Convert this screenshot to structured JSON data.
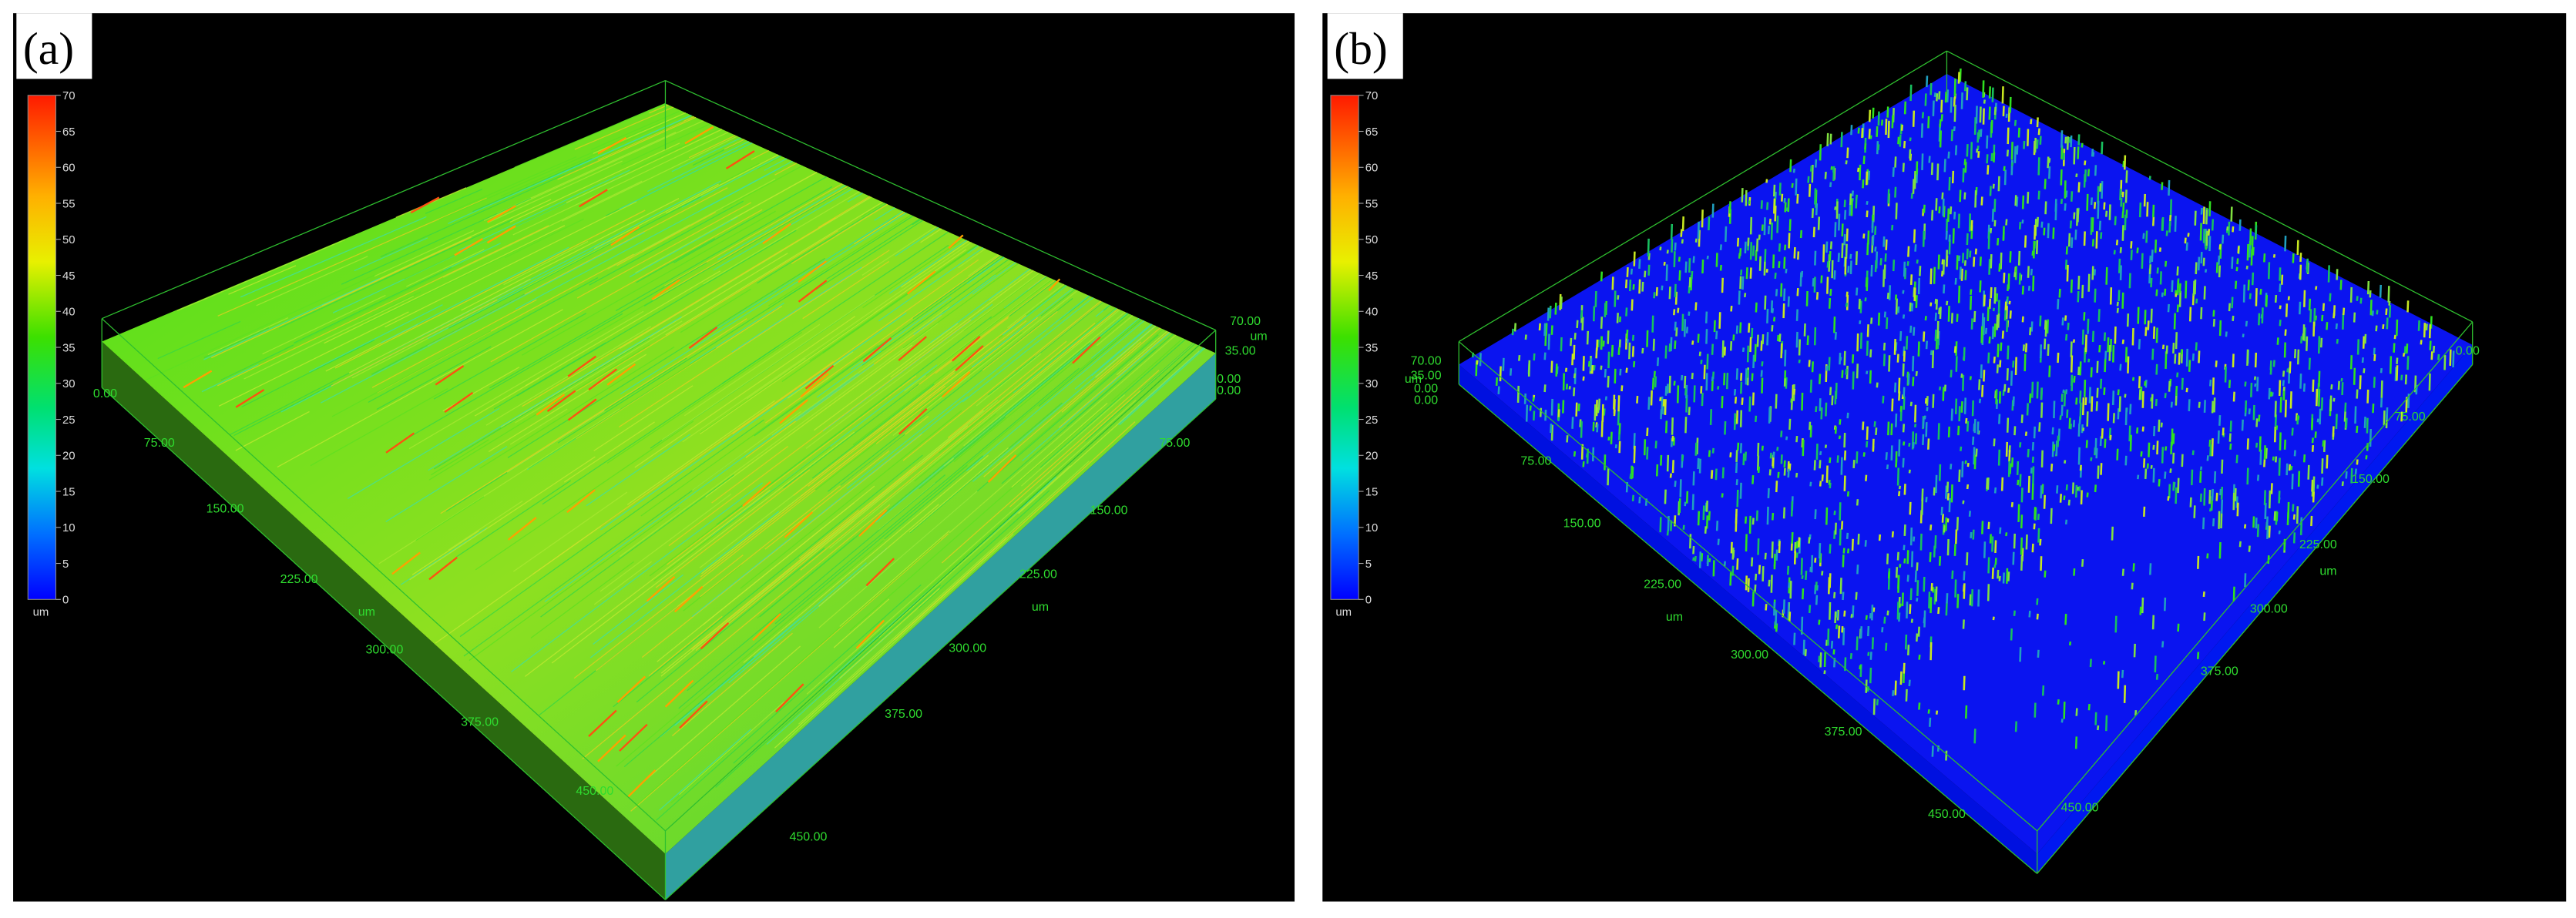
{
  "panels": [
    {
      "label": "(a)",
      "colorbar": {
        "ticks": [
          70,
          65,
          60,
          55,
          50,
          45,
          40,
          35,
          30,
          25,
          20,
          15,
          10,
          5,
          0
        ],
        "unit": "um"
      },
      "z_ticks": [
        "70.00",
        "35.00",
        "0.00",
        "0.00"
      ],
      "z_unit": "um",
      "left_ticks": [
        "0.00",
        "75.00",
        "150.00",
        "225.00",
        "300.00",
        "375.00",
        "450.00"
      ],
      "left_unit": "um",
      "right_ticks": [
        "75.00",
        "150.00",
        "225.00",
        "300.00",
        "375.00",
        "450.00"
      ],
      "right_unit": "um"
    },
    {
      "label": "(b)",
      "colorbar": {
        "ticks": [
          70,
          65,
          60,
          55,
          50,
          45,
          40,
          35,
          30,
          25,
          20,
          15,
          10,
          5,
          0
        ],
        "unit": "um"
      },
      "z_ticks": [
        "70.00",
        "35.00",
        "0.00",
        "0.00"
      ],
      "z_unit": "um",
      "left_ticks": [
        "75.00",
        "150.00",
        "225.00",
        "300.00",
        "375.00",
        "450.00"
      ],
      "left_unit": "um",
      "right_ticks": [
        "0.00",
        "75.00",
        "150.00",
        "225.00",
        "300.00",
        "375.00",
        "450.00"
      ],
      "right_unit": "um"
    }
  ]
}
